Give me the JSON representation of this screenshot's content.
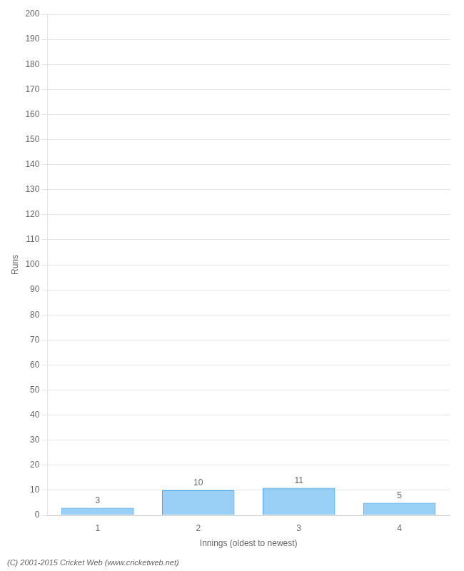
{
  "chart_data": {
    "type": "bar",
    "categories": [
      1,
      2,
      3,
      4
    ],
    "values": [
      3,
      10,
      11,
      5
    ],
    "xlabel": "Innings (oldest to newest)",
    "ylabel": "Runs",
    "ylim": [
      0,
      200
    ],
    "yticks": [
      0,
      10,
      20,
      30,
      40,
      50,
      60,
      70,
      80,
      90,
      100,
      110,
      120,
      130,
      140,
      150,
      160,
      170,
      180,
      190,
      200
    ],
    "grid": true,
    "data_labels": true,
    "annotations": [
      "(C) 2001-2015 Cricket Web (www.cricketweb.net)"
    ]
  }
}
